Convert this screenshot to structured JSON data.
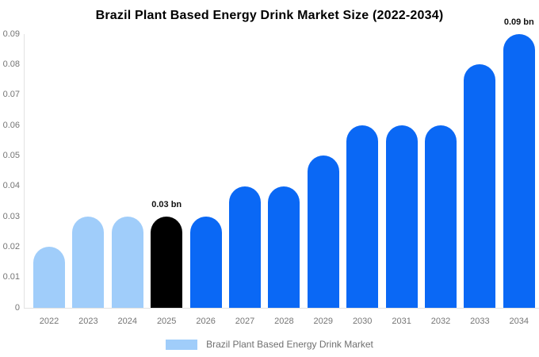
{
  "title": "Brazil Plant Based Energy Drink Market Size (2022-2034)",
  "legend": {
    "label": "Brazil Plant Based Energy Drink Market"
  },
  "colors": {
    "historical": "#a0cdfa",
    "highlight": "#000000",
    "forecast": "#0a68f5"
  },
  "annotations": [
    {
      "year": "2025",
      "text": "0.03 bn"
    },
    {
      "year": "2034",
      "text": "0.09 bn"
    }
  ],
  "chart_data": {
    "type": "bar",
    "title": "Brazil Plant Based Energy Drink Market Size (2022-2034)",
    "categories": [
      "2022",
      "2023",
      "2024",
      "2025",
      "2026",
      "2027",
      "2028",
      "2029",
      "2030",
      "2031",
      "2032",
      "2033",
      "2034"
    ],
    "values": [
      0.02,
      0.03,
      0.03,
      0.03,
      0.03,
      0.04,
      0.04,
      0.05,
      0.06,
      0.06,
      0.06,
      0.08,
      0.09
    ],
    "bar_styles": [
      "historical",
      "historical",
      "historical",
      "highlight",
      "forecast",
      "forecast",
      "forecast",
      "forecast",
      "forecast",
      "forecast",
      "forecast",
      "forecast",
      "forecast"
    ],
    "unit": "bn",
    "xlabel": "",
    "ylabel": "",
    "ylim": [
      0,
      0.09
    ],
    "yticks": [
      "0",
      "0.01",
      "0.02",
      "0.03",
      "0.04",
      "0.05",
      "0.06",
      "0.07",
      "0.08",
      "0.09"
    ],
    "grid": false,
    "legend_position": "bottom",
    "legend_entries": [
      "Brazil Plant Based Energy Drink Market"
    ]
  }
}
